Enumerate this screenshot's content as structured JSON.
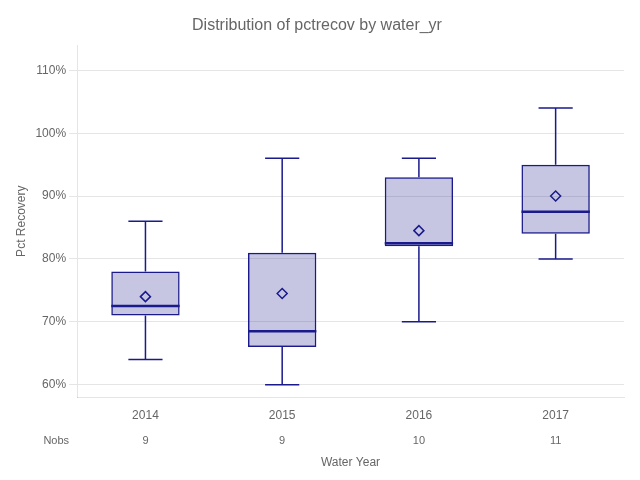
{
  "chart_data": {
    "type": "box",
    "title": "Distribution of pctrecov by water_yr",
    "xlabel": "Water Year",
    "ylabel": "Pct Recovery",
    "categories": [
      "2014",
      "2015",
      "2016",
      "2017"
    ],
    "values": [
      {
        "whislo": 64,
        "q1": 71,
        "med": 72.5,
        "mean": 74.0,
        "q3": 78,
        "whishi": 86
      },
      {
        "whislo": 60,
        "q1": 66,
        "med": 68.5,
        "mean": 74.5,
        "q3": 81,
        "whishi": 96
      },
      {
        "whislo": 70,
        "q1": 82,
        "med": 82.5,
        "mean": 84.5,
        "q3": 93,
        "whishi": 96
      },
      {
        "whislo": 80,
        "q1": 84,
        "med": 87.5,
        "mean": 90.0,
        "q3": 95,
        "whishi": 104
      }
    ],
    "nobs_label": "Nobs",
    "nobs": [
      9,
      9,
      10,
      11
    ],
    "color": "#1a1a8c",
    "marker": "diamond",
    "ylim": [
      58,
      114
    ],
    "yticks": [
      {
        "value": 60,
        "label": "60%"
      },
      {
        "value": 70,
        "label": "70%"
      },
      {
        "value": 80,
        "label": "80%"
      },
      {
        "value": 90,
        "label": "90%"
      },
      {
        "value": 100,
        "label": "100%"
      },
      {
        "value": 110,
        "label": "110%"
      }
    ],
    "grid": true
  }
}
